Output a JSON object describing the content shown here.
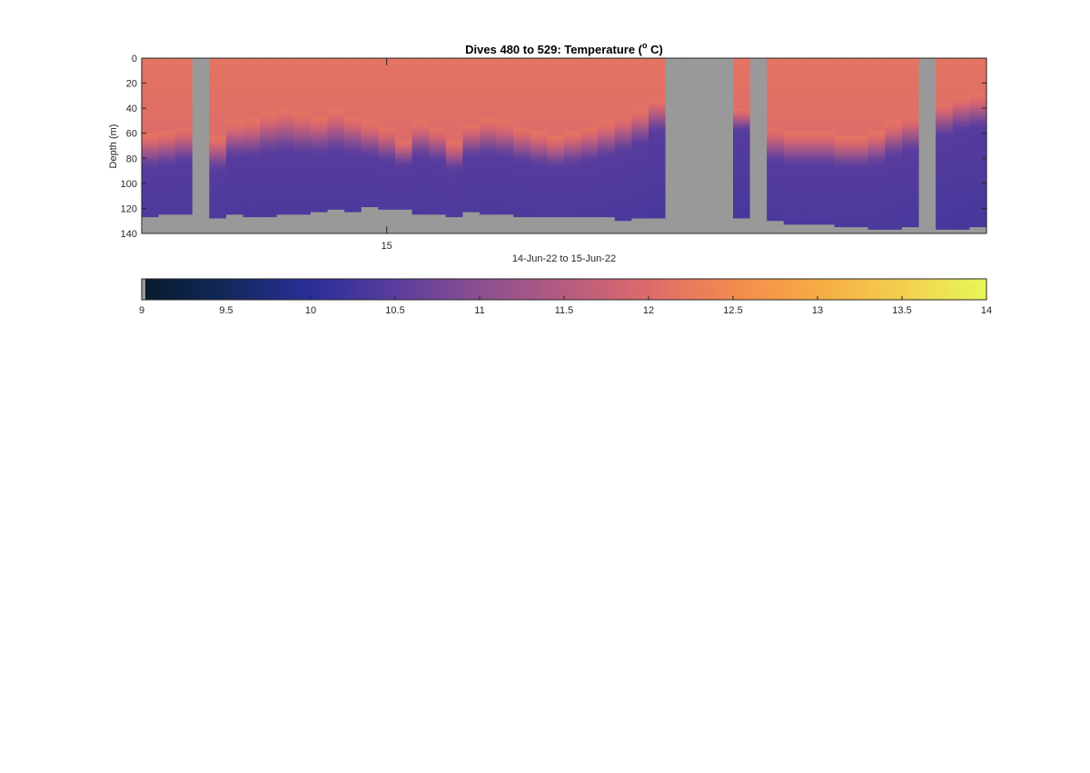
{
  "chart_data": {
    "type": "heatmap",
    "title": "Dives 480 to 529: Temperature (",
    "title_degree": "o",
    "title_unit": " C)",
    "xlabel": "14-Jun-22 to 15-Jun-22",
    "ylabel": "Depth (m)",
    "x_tick_label": "15",
    "y_ticks": [
      0,
      20,
      40,
      60,
      80,
      100,
      120,
      140
    ],
    "ylim": [
      0,
      140
    ],
    "y_reversed": true,
    "dives": {
      "first": 480,
      "last": 529,
      "count": 50
    },
    "x_tick_index": 14,
    "no_data_color": "#999999",
    "colorbar": {
      "orientation": "horizontal",
      "range": [
        9,
        14
      ],
      "ticks": [
        "9",
        "9.5",
        "10",
        "10.5",
        "11",
        "11.5",
        "12",
        "12.5",
        "13",
        "13.5",
        "14"
      ],
      "stops": [
        [
          9.0,
          "#061a2c"
        ],
        [
          9.5,
          "#12295a"
        ],
        [
          10.0,
          "#2a2f98"
        ],
        [
          10.5,
          "#5a3d9e"
        ],
        [
          11.0,
          "#8a4f90"
        ],
        [
          11.5,
          "#b55b80"
        ],
        [
          12.0,
          "#dd6a6a"
        ],
        [
          12.5,
          "#f28a4e"
        ],
        [
          13.0,
          "#f6ab43"
        ],
        [
          13.5,
          "#f2cf4e"
        ],
        [
          14.0,
          "#e7f759"
        ]
      ]
    },
    "profiles": [
      {
        "thermocline": [
          60,
          90
        ],
        "bottom": 127
      },
      {
        "thermocline": [
          58,
          88
        ],
        "bottom": 125
      },
      {
        "thermocline": [
          55,
          85
        ],
        "bottom": 125
      },
      {
        "missing": true
      },
      {
        "thermocline": [
          62,
          92
        ],
        "bottom": 128
      },
      {
        "thermocline": [
          50,
          82
        ],
        "bottom": 125
      },
      {
        "thermocline": [
          48,
          82
        ],
        "bottom": 127
      },
      {
        "thermocline": [
          42,
          80
        ],
        "bottom": 127
      },
      {
        "thermocline": [
          40,
          78
        ],
        "bottom": 125
      },
      {
        "thermocline": [
          42,
          80
        ],
        "bottom": 125
      },
      {
        "thermocline": [
          45,
          80
        ],
        "bottom": 123
      },
      {
        "thermocline": [
          40,
          78
        ],
        "bottom": 121
      },
      {
        "thermocline": [
          45,
          80
        ],
        "bottom": 123
      },
      {
        "thermocline": [
          50,
          82
        ],
        "bottom": 119
      },
      {
        "thermocline": [
          55,
          85
        ],
        "bottom": 121
      },
      {
        "thermocline": [
          65,
          88
        ],
        "bottom": 121
      },
      {
        "thermocline": [
          50,
          82
        ],
        "bottom": 125
      },
      {
        "thermocline": [
          55,
          85
        ],
        "bottom": 125
      },
      {
        "thermocline": [
          65,
          92
        ],
        "bottom": 127
      },
      {
        "thermocline": [
          52,
          82
        ],
        "bottom": 123
      },
      {
        "thermocline": [
          48,
          80
        ],
        "bottom": 125
      },
      {
        "thermocline": [
          50,
          82
        ],
        "bottom": 125
      },
      {
        "thermocline": [
          55,
          85
        ],
        "bottom": 127
      },
      {
        "thermocline": [
          58,
          88
        ],
        "bottom": 127
      },
      {
        "thermocline": [
          62,
          90
        ],
        "bottom": 127
      },
      {
        "thermocline": [
          58,
          88
        ],
        "bottom": 127
      },
      {
        "thermocline": [
          55,
          85
        ],
        "bottom": 127
      },
      {
        "thermocline": [
          50,
          82
        ],
        "bottom": 127
      },
      {
        "thermocline": [
          45,
          78
        ],
        "bottom": 130
      },
      {
        "thermocline": [
          40,
          72
        ],
        "bottom": 128
      },
      {
        "thermocline": [
          32,
          62
        ],
        "bottom": 128
      },
      {
        "missing": true
      },
      {
        "missing": true
      },
      {
        "missing": true
      },
      {
        "missing": true
      },
      {
        "thermocline": [
          40,
          60
        ],
        "bottom": 128
      },
      {
        "missing": true
      },
      {
        "thermocline": [
          55,
          85
        ],
        "bottom": 130
      },
      {
        "thermocline": [
          58,
          88
        ],
        "bottom": 133
      },
      {
        "thermocline": [
          58,
          88
        ],
        "bottom": 133
      },
      {
        "thermocline": [
          58,
          88
        ],
        "bottom": 133
      },
      {
        "thermocline": [
          62,
          90
        ],
        "bottom": 135
      },
      {
        "thermocline": [
          62,
          90
        ],
        "bottom": 135
      },
      {
        "thermocline": [
          58,
          88
        ],
        "bottom": 137
      },
      {
        "thermocline": [
          50,
          82
        ],
        "bottom": 137
      },
      {
        "thermocline": [
          45,
          78
        ],
        "bottom": 135
      },
      {
        "missing": true
      },
      {
        "thermocline": [
          35,
          65
        ],
        "bottom": 137
      },
      {
        "thermocline": [
          30,
          60
        ],
        "bottom": 137
      },
      {
        "thermocline": [
          28,
          58
        ],
        "bottom": 135
      }
    ]
  }
}
